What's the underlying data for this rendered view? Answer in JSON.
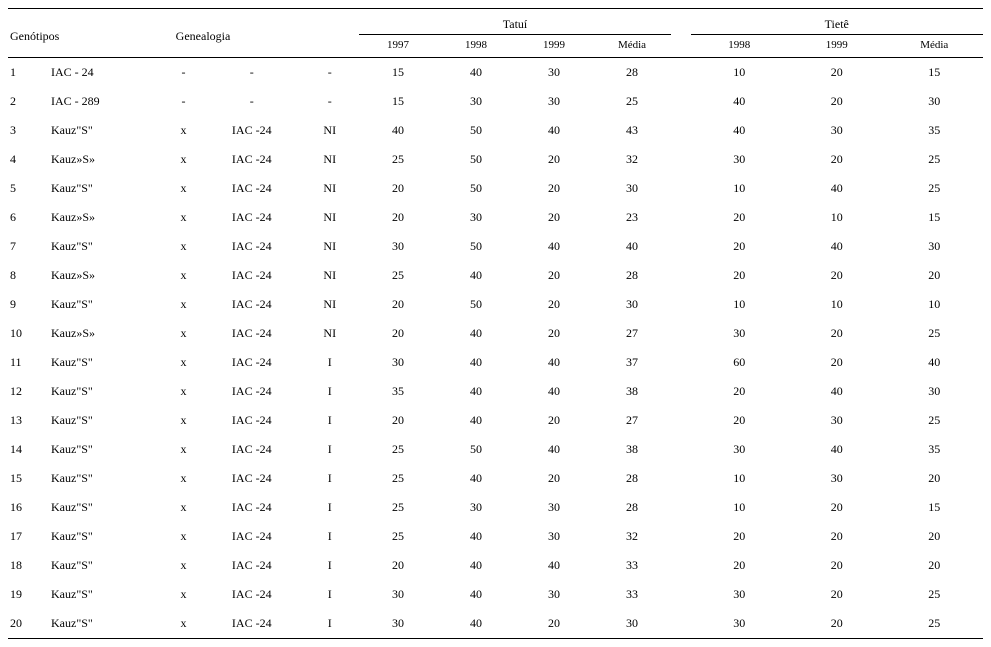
{
  "headers": {
    "genotipos": "Genótipos",
    "genealogia": "Genealogia",
    "tatui": "Tatuí",
    "tiete": "Tietê",
    "years": {
      "y1997": "1997",
      "y1998": "1998",
      "y1999": "1999",
      "media": "Média"
    }
  },
  "rows": [
    {
      "id": "1",
      "p1": "IAC - 24",
      "cross": "-",
      "p2": "-",
      "irr": "-",
      "t97": "15",
      "t98": "40",
      "t99": "30",
      "tmed": "28",
      "ti98": "10",
      "ti99": "20",
      "timed": "15"
    },
    {
      "id": "2",
      "p1": "IAC - 289",
      "cross": "-",
      "p2": "-",
      "irr": "-",
      "t97": "15",
      "t98": "30",
      "t99": "30",
      "tmed": "25",
      "ti98": "40",
      "ti99": "20",
      "timed": "30"
    },
    {
      "id": "3",
      "p1": "Kauz\"S\"",
      "cross": "x",
      "p2": "IAC -24",
      "irr": "NI",
      "t97": "40",
      "t98": "50",
      "t99": "40",
      "tmed": "43",
      "ti98": "40",
      "ti99": "30",
      "timed": "35"
    },
    {
      "id": "4",
      "p1": "Kauz»S»",
      "cross": "x",
      "p2": "IAC -24",
      "irr": "NI",
      "t97": "25",
      "t98": "50",
      "t99": "20",
      "tmed": "32",
      "ti98": "30",
      "ti99": "20",
      "timed": "25"
    },
    {
      "id": "5",
      "p1": "Kauz\"S\"",
      "cross": "x",
      "p2": "IAC -24",
      "irr": "NI",
      "t97": "20",
      "t98": "50",
      "t99": "20",
      "tmed": "30",
      "ti98": "10",
      "ti99": "40",
      "timed": "25"
    },
    {
      "id": "6",
      "p1": "Kauz»S»",
      "cross": "x",
      "p2": "IAC -24",
      "irr": "NI",
      "t97": "20",
      "t98": "30",
      "t99": "20",
      "tmed": "23",
      "ti98": "20",
      "ti99": "10",
      "timed": "15"
    },
    {
      "id": "7",
      "p1": "Kauz\"S\"",
      "cross": "x",
      "p2": "IAC -24",
      "irr": "NI",
      "t97": "30",
      "t98": "50",
      "t99": "40",
      "tmed": "40",
      "ti98": "20",
      "ti99": "40",
      "timed": "30"
    },
    {
      "id": "8",
      "p1": "Kauz»S»",
      "cross": "x",
      "p2": "IAC -24",
      "irr": "NI",
      "t97": "25",
      "t98": "40",
      "t99": "20",
      "tmed": "28",
      "ti98": "20",
      "ti99": "20",
      "timed": "20"
    },
    {
      "id": "9",
      "p1": "Kauz\"S\"",
      "cross": "x",
      "p2": "IAC -24",
      "irr": "NI",
      "t97": "20",
      "t98": "50",
      "t99": "20",
      "tmed": "30",
      "ti98": "10",
      "ti99": "10",
      "timed": "10"
    },
    {
      "id": "10",
      "p1": "Kauz»S»",
      "cross": "x",
      "p2": "IAC -24",
      "irr": "NI",
      "t97": "20",
      "t98": "40",
      "t99": "20",
      "tmed": "27",
      "ti98": "30",
      "ti99": "20",
      "timed": "25"
    },
    {
      "id": "11",
      "p1": "Kauz\"S\"",
      "cross": "x",
      "p2": "IAC -24",
      "irr": "I",
      "t97": "30",
      "t98": "40",
      "t99": "40",
      "tmed": "37",
      "ti98": "60",
      "ti99": "20",
      "timed": "40"
    },
    {
      "id": "12",
      "p1": "Kauz\"S\"",
      "cross": "x",
      "p2": "IAC -24",
      "irr": "I",
      "t97": "35",
      "t98": "40",
      "t99": "40",
      "tmed": "38",
      "ti98": "20",
      "ti99": "40",
      "timed": "30"
    },
    {
      "id": "13",
      "p1": "Kauz\"S\"",
      "cross": "x",
      "p2": "IAC -24",
      "irr": "I",
      "t97": "20",
      "t98": "40",
      "t99": "20",
      "tmed": "27",
      "ti98": "20",
      "ti99": "30",
      "timed": "25"
    },
    {
      "id": "14",
      "p1": "Kauz\"S\"",
      "cross": "x",
      "p2": "IAC -24",
      "irr": "I",
      "t97": "25",
      "t98": "50",
      "t99": "40",
      "tmed": "38",
      "ti98": "30",
      "ti99": "40",
      "timed": "35"
    },
    {
      "id": "15",
      "p1": "Kauz\"S\"",
      "cross": "x",
      "p2": "IAC -24",
      "irr": "I",
      "t97": "25",
      "t98": "40",
      "t99": "20",
      "tmed": "28",
      "ti98": "10",
      "ti99": "30",
      "timed": "20"
    },
    {
      "id": "16",
      "p1": "Kauz\"S\"",
      "cross": "x",
      "p2": "IAC -24",
      "irr": "I",
      "t97": "25",
      "t98": "30",
      "t99": "30",
      "tmed": "28",
      "ti98": "10",
      "ti99": "20",
      "timed": "15"
    },
    {
      "id": "17",
      "p1": "Kauz\"S\"",
      "cross": "x",
      "p2": "IAC -24",
      "irr": "I",
      "t97": "25",
      "t98": "40",
      "t99": "30",
      "tmed": "32",
      "ti98": "20",
      "ti99": "20",
      "timed": "20"
    },
    {
      "id": "18",
      "p1": "Kauz\"S\"",
      "cross": "x",
      "p2": "IAC -24",
      "irr": "I",
      "t97": "20",
      "t98": "40",
      "t99": "40",
      "tmed": "33",
      "ti98": "20",
      "ti99": "20",
      "timed": "20"
    },
    {
      "id": "19",
      "p1": "Kauz\"S\"",
      "cross": "x",
      "p2": "IAC -24",
      "irr": "I",
      "t97": "30",
      "t98": "40",
      "t99": "30",
      "tmed": "33",
      "ti98": "30",
      "ti99": "20",
      "timed": "25"
    },
    {
      "id": "20",
      "p1": "Kauz\"S\"",
      "cross": "x",
      "p2": "IAC -24",
      "irr": "I",
      "t97": "30",
      "t98": "40",
      "t99": "20",
      "tmed": "30",
      "ti98": "30",
      "ti99": "20",
      "timed": "25"
    }
  ]
}
